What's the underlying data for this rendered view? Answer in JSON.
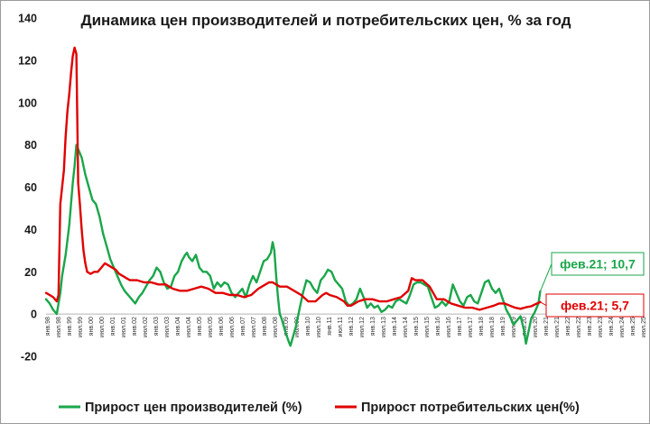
{
  "chart_data": {
    "type": "line",
    "title": "Динамика цен производителей и потребительских цен, % за год",
    "xlabel": "",
    "ylabel": "",
    "ylim": [
      -20,
      140
    ],
    "yticks": [
      -20,
      0,
      20,
      40,
      60,
      80,
      100,
      120,
      140
    ],
    "grid": false,
    "legend_position": "bottom",
    "x_start": "1998-01",
    "x_end": "2025-12",
    "x_tick_labels": [
      "янв.98",
      "июл.98",
      "янв.99",
      "июл.99",
      "янв.00",
      "июл.00",
      "янв.01",
      "июл.01",
      "янв.02",
      "июл.02",
      "янв.03",
      "июл.03",
      "янв.04",
      "июл.04",
      "янв.05",
      "июл.05",
      "янв.06",
      "июл.06",
      "янв.07",
      "июл.07",
      "янв.08",
      "июл.08",
      "янв.09",
      "июл.09",
      "янв.10",
      "июл.10",
      "янв.11",
      "июл.11",
      "янв.12",
      "июл.12",
      "янв.13",
      "июл.13",
      "янв.14",
      "июл.14",
      "янв.15",
      "июл.15",
      "янв.16",
      "июл.16",
      "янв.17",
      "июл.17",
      "янв.18",
      "июл.18",
      "янв.19",
      "июл.19",
      "янв.20",
      "июл.20",
      "янв.21",
      "июл.21",
      "янв.22",
      "июл.22",
      "янв.23",
      "июл.23",
      "янв.24",
      "июл.24",
      "янв.25",
      "июл.25"
    ],
    "series": [
      {
        "name": "Прирост цен производителей (%)",
        "color": "#1aa64a",
        "points": [
          [
            "1998-01",
            7
          ],
          [
            "1998-03",
            5
          ],
          [
            "1998-05",
            2
          ],
          [
            "1998-07",
            0
          ],
          [
            "1998-09",
            10
          ],
          [
            "1998-10",
            18
          ],
          [
            "1998-12",
            28
          ],
          [
            "1999-02",
            42
          ],
          [
            "1999-04",
            62
          ],
          [
            "1999-05",
            70
          ],
          [
            "1999-06",
            80
          ],
          [
            "1999-07",
            78
          ],
          [
            "1999-09",
            74
          ],
          [
            "1999-11",
            66
          ],
          [
            "2000-01",
            60
          ],
          [
            "2000-03",
            54
          ],
          [
            "2000-05",
            52
          ],
          [
            "2000-07",
            46
          ],
          [
            "2000-09",
            38
          ],
          [
            "2000-11",
            32
          ],
          [
            "2001-01",
            26
          ],
          [
            "2001-03",
            22
          ],
          [
            "2001-05",
            18
          ],
          [
            "2001-07",
            14
          ],
          [
            "2001-09",
            11
          ],
          [
            "2001-11",
            9
          ],
          [
            "2002-01",
            7
          ],
          [
            "2002-03",
            5
          ],
          [
            "2002-05",
            8
          ],
          [
            "2002-07",
            10
          ],
          [
            "2002-09",
            13
          ],
          [
            "2002-11",
            16
          ],
          [
            "2003-01",
            18
          ],
          [
            "2003-03",
            22
          ],
          [
            "2003-05",
            20
          ],
          [
            "2003-07",
            15
          ],
          [
            "2003-09",
            12
          ],
          [
            "2003-11",
            13
          ],
          [
            "2004-01",
            18
          ],
          [
            "2004-03",
            20
          ],
          [
            "2004-05",
            25
          ],
          [
            "2004-07",
            28
          ],
          [
            "2004-08",
            29
          ],
          [
            "2004-09",
            27
          ],
          [
            "2004-11",
            25
          ],
          [
            "2005-01",
            28
          ],
          [
            "2005-03",
            22
          ],
          [
            "2005-05",
            20
          ],
          [
            "2005-07",
            20
          ],
          [
            "2005-09",
            18
          ],
          [
            "2005-11",
            12
          ],
          [
            "2006-01",
            15
          ],
          [
            "2006-03",
            13
          ],
          [
            "2006-05",
            15
          ],
          [
            "2006-07",
            14
          ],
          [
            "2006-09",
            10
          ],
          [
            "2006-11",
            8
          ],
          [
            "2007-01",
            10
          ],
          [
            "2007-03",
            12
          ],
          [
            "2007-05",
            8
          ],
          [
            "2007-07",
            14
          ],
          [
            "2007-09",
            18
          ],
          [
            "2007-11",
            15
          ],
          [
            "2008-01",
            20
          ],
          [
            "2008-03",
            25
          ],
          [
            "2008-05",
            26
          ],
          [
            "2008-07",
            29
          ],
          [
            "2008-08",
            34
          ],
          [
            "2008-09",
            30
          ],
          [
            "2008-10",
            18
          ],
          [
            "2008-11",
            8
          ],
          [
            "2008-12",
            0
          ],
          [
            "2009-01",
            -2
          ],
          [
            "2009-03",
            -8
          ],
          [
            "2009-05",
            -13
          ],
          [
            "2009-06",
            -15
          ],
          [
            "2009-07",
            -12
          ],
          [
            "2009-09",
            -6
          ],
          [
            "2009-11",
            2
          ],
          [
            "2010-01",
            10
          ],
          [
            "2010-03",
            16
          ],
          [
            "2010-05",
            15
          ],
          [
            "2010-07",
            12
          ],
          [
            "2010-09",
            10
          ],
          [
            "2010-11",
            16
          ],
          [
            "2011-01",
            18
          ],
          [
            "2011-03",
            21
          ],
          [
            "2011-05",
            20
          ],
          [
            "2011-07",
            16
          ],
          [
            "2011-09",
            14
          ],
          [
            "2011-11",
            12
          ],
          [
            "2012-01",
            6
          ],
          [
            "2012-03",
            4
          ],
          [
            "2012-05",
            5
          ],
          [
            "2012-07",
            7
          ],
          [
            "2012-09",
            12
          ],
          [
            "2012-11",
            8
          ],
          [
            "2013-01",
            3
          ],
          [
            "2013-03",
            5
          ],
          [
            "2013-05",
            3
          ],
          [
            "2013-07",
            4
          ],
          [
            "2013-09",
            1
          ],
          [
            "2013-11",
            2
          ],
          [
            "2014-01",
            4
          ],
          [
            "2014-03",
            3
          ],
          [
            "2014-05",
            6
          ],
          [
            "2014-07",
            7
          ],
          [
            "2014-09",
            6
          ],
          [
            "2014-11",
            5
          ],
          [
            "2015-01",
            9
          ],
          [
            "2015-03",
            14
          ],
          [
            "2015-05",
            15
          ],
          [
            "2015-07",
            15
          ],
          [
            "2015-09",
            14
          ],
          [
            "2015-11",
            13
          ],
          [
            "2016-01",
            8
          ],
          [
            "2016-03",
            3
          ],
          [
            "2016-05",
            4
          ],
          [
            "2016-07",
            6
          ],
          [
            "2016-09",
            4
          ],
          [
            "2016-11",
            6
          ],
          [
            "2017-01",
            14
          ],
          [
            "2017-03",
            10
          ],
          [
            "2017-05",
            6
          ],
          [
            "2017-07",
            4
          ],
          [
            "2017-09",
            8
          ],
          [
            "2017-11",
            9
          ],
          [
            "2018-01",
            6
          ],
          [
            "2018-03",
            5
          ],
          [
            "2018-05",
            10
          ],
          [
            "2018-07",
            15
          ],
          [
            "2018-09",
            16
          ],
          [
            "2018-11",
            12
          ],
          [
            "2019-01",
            10
          ],
          [
            "2019-03",
            12
          ],
          [
            "2019-05",
            7
          ],
          [
            "2019-07",
            2
          ],
          [
            "2019-09",
            -1
          ],
          [
            "2019-11",
            -5
          ],
          [
            "2020-01",
            -3
          ],
          [
            "2020-03",
            -1
          ],
          [
            "2020-05",
            -8
          ],
          [
            "2020-06",
            -14
          ],
          [
            "2020-07",
            -10
          ],
          [
            "2020-09",
            -2
          ],
          [
            "2020-11",
            1
          ],
          [
            "2021-01",
            5
          ],
          [
            "2021-02",
            10.7
          ]
        ]
      },
      {
        "name": "Прирост потребительских цен(%)",
        "color": "#e00000",
        "points": [
          [
            "1998-01",
            10
          ],
          [
            "1998-03",
            9
          ],
          [
            "1998-05",
            8
          ],
          [
            "1998-07",
            6
          ],
          [
            "1998-08",
            9
          ],
          [
            "1998-09",
            52
          ],
          [
            "1998-10",
            60
          ],
          [
            "1998-11",
            68
          ],
          [
            "1998-12",
            84
          ],
          [
            "1999-01",
            96
          ],
          [
            "1999-02",
            104
          ],
          [
            "1999-03",
            114
          ],
          [
            "1999-04",
            122
          ],
          [
            "1999-05",
            126
          ],
          [
            "1999-06",
            123
          ],
          [
            "1999-07",
            62
          ],
          [
            "1999-08",
            52
          ],
          [
            "1999-09",
            40
          ],
          [
            "1999-10",
            30
          ],
          [
            "1999-11",
            24
          ],
          [
            "1999-12",
            20
          ],
          [
            "2000-02",
            19
          ],
          [
            "2000-04",
            20
          ],
          [
            "2000-06",
            20
          ],
          [
            "2000-08",
            22
          ],
          [
            "2000-10",
            24
          ],
          [
            "2000-12",
            23
          ],
          [
            "2001-02",
            22
          ],
          [
            "2001-04",
            21
          ],
          [
            "2001-06",
            19
          ],
          [
            "2001-08",
            18
          ],
          [
            "2001-10",
            17
          ],
          [
            "2001-12",
            16
          ],
          [
            "2002-04",
            16
          ],
          [
            "2002-08",
            15
          ],
          [
            "2002-12",
            15
          ],
          [
            "2003-04",
            14
          ],
          [
            "2003-08",
            14
          ],
          [
            "2003-12",
            12
          ],
          [
            "2004-04",
            11
          ],
          [
            "2004-08",
            11
          ],
          [
            "2004-12",
            12
          ],
          [
            "2005-04",
            13
          ],
          [
            "2005-08",
            12
          ],
          [
            "2005-12",
            10
          ],
          [
            "2006-04",
            10
          ],
          [
            "2006-08",
            9
          ],
          [
            "2006-12",
            9
          ],
          [
            "2007-04",
            8
          ],
          [
            "2007-08",
            9
          ],
          [
            "2007-12",
            12
          ],
          [
            "2008-04",
            14
          ],
          [
            "2008-06",
            15
          ],
          [
            "2008-08",
            15
          ],
          [
            "2008-10",
            14
          ],
          [
            "2008-12",
            13
          ],
          [
            "2009-04",
            13
          ],
          [
            "2009-08",
            11
          ],
          [
            "2009-12",
            9
          ],
          [
            "2010-04",
            6
          ],
          [
            "2010-08",
            6
          ],
          [
            "2010-12",
            9
          ],
          [
            "2011-02",
            10
          ],
          [
            "2011-04",
            9
          ],
          [
            "2011-08",
            8
          ],
          [
            "2011-12",
            6
          ],
          [
            "2012-02",
            4
          ],
          [
            "2012-04",
            4
          ],
          [
            "2012-08",
            6
          ],
          [
            "2012-12",
            7
          ],
          [
            "2013-04",
            7
          ],
          [
            "2013-08",
            6
          ],
          [
            "2013-12",
            6
          ],
          [
            "2014-04",
            7
          ],
          [
            "2014-08",
            8
          ],
          [
            "2014-12",
            11
          ],
          [
            "2015-02",
            17
          ],
          [
            "2015-04",
            16
          ],
          [
            "2015-08",
            16
          ],
          [
            "2015-12",
            13
          ],
          [
            "2016-04",
            7
          ],
          [
            "2016-08",
            7
          ],
          [
            "2016-12",
            5
          ],
          [
            "2017-04",
            4
          ],
          [
            "2017-08",
            3
          ],
          [
            "2017-12",
            3
          ],
          [
            "2018-04",
            2
          ],
          [
            "2018-08",
            3
          ],
          [
            "2018-12",
            4
          ],
          [
            "2019-03",
            5
          ],
          [
            "2019-06",
            5
          ],
          [
            "2019-09",
            4
          ],
          [
            "2019-12",
            3
          ],
          [
            "2020-03",
            2.5
          ],
          [
            "2020-06",
            3.2
          ],
          [
            "2020-09",
            3.7
          ],
          [
            "2020-12",
            4.9
          ],
          [
            "2021-02",
            5.7
          ]
        ]
      }
    ],
    "annotations": [
      {
        "text": "фев.21; 10,7",
        "series": 0,
        "x": "2021-02",
        "y": 10.7,
        "color": "#1aa64a"
      },
      {
        "text": "фев.21; 5,7",
        "series": 1,
        "x": "2021-02",
        "y": 5.7,
        "color": "#e00000"
      }
    ]
  }
}
